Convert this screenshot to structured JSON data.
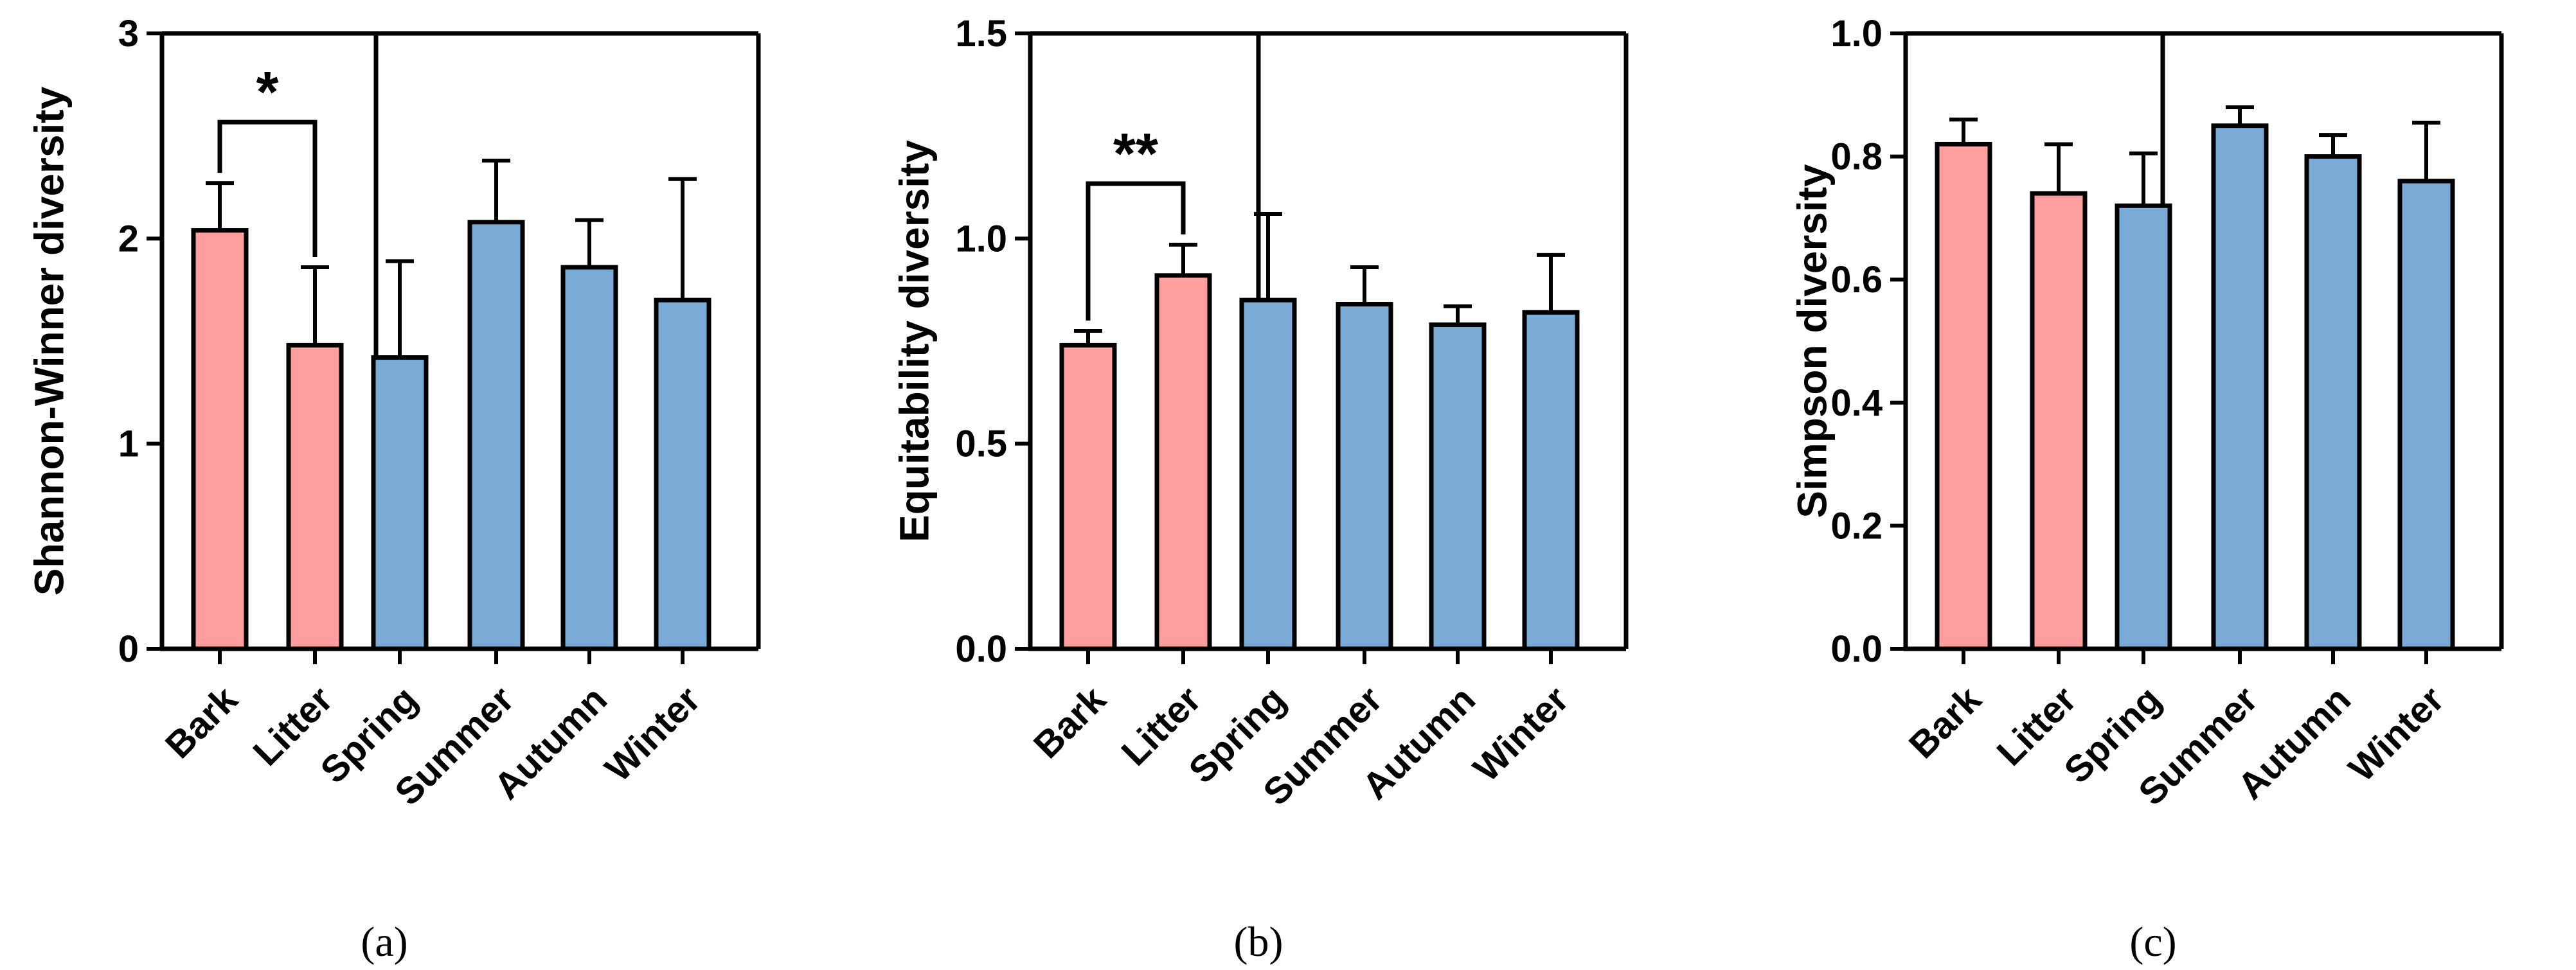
{
  "colors": {
    "habitat": "#ff9e9e",
    "season": "#7aaad6",
    "axis": "#000000"
  },
  "chart_data": [
    {
      "type": "bar",
      "panel_label": "(a)",
      "ylabel": "Shannon-Winner diversity",
      "ylim": [
        0,
        3
      ],
      "yticks": [
        0,
        1,
        2,
        3
      ],
      "ytick_labels": [
        "0",
        "1",
        "2",
        "3"
      ],
      "categories": [
        "Bark",
        "Litter",
        "Spring",
        "Summer",
        "Autumn",
        "Winter"
      ],
      "values": [
        2.04,
        1.48,
        1.42,
        2.08,
        1.86,
        1.7
      ],
      "errors": [
        0.23,
        0.38,
        0.47,
        0.3,
        0.23,
        0.59
      ],
      "groups": [
        "habitat",
        "habitat",
        "season",
        "season",
        "season",
        "season"
      ],
      "significance": {
        "between": [
          0,
          1
        ],
        "label": "*"
      }
    },
    {
      "type": "bar",
      "panel_label": "(b)",
      "ylabel": "Equitability diversity",
      "ylim": [
        0,
        1.5
      ],
      "yticks": [
        0,
        0.5,
        1,
        1.5
      ],
      "ytick_labels": [
        "0.0",
        "0.5",
        "1.0",
        "1.5"
      ],
      "categories": [
        "Bark",
        "Litter",
        "Spring",
        "Summer",
        "Autumn",
        "Winter"
      ],
      "values": [
        0.74,
        0.91,
        0.85,
        0.84,
        0.79,
        0.82
      ],
      "errors": [
        0.035,
        0.075,
        0.21,
        0.09,
        0.045,
        0.14
      ],
      "groups": [
        "habitat",
        "habitat",
        "season",
        "season",
        "season",
        "season"
      ],
      "significance": {
        "between": [
          0,
          1
        ],
        "label": "**"
      }
    },
    {
      "type": "bar",
      "panel_label": "(c)",
      "ylabel": "Simpson diversity",
      "ylim": [
        0,
        1
      ],
      "yticks": [
        0,
        0.2,
        0.4,
        0.6,
        0.8,
        1
      ],
      "ytick_labels": [
        "0.0",
        "0.2",
        "0.4",
        "0.6",
        "0.8",
        "1.0"
      ],
      "categories": [
        "Bark",
        "Litter",
        "Spring",
        "Summer",
        "Autumn",
        "Winter"
      ],
      "values": [
        0.82,
        0.74,
        0.72,
        0.85,
        0.8,
        0.76
      ],
      "errors": [
        0.04,
        0.08,
        0.085,
        0.03,
        0.035,
        0.095
      ],
      "groups": [
        "habitat",
        "habitat",
        "season",
        "season",
        "season",
        "season"
      ],
      "significance": null
    }
  ]
}
